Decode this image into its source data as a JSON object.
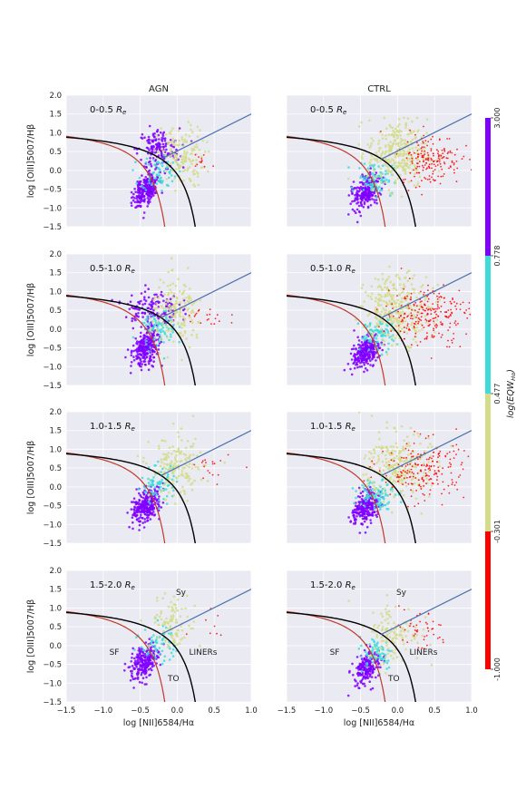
{
  "colors": {
    "panel_bg": "#EAEAF2",
    "grid": "#FFFFFF",
    "kewley_line": "#000000",
    "kauffmann_line": "#C0392B",
    "seyfert_liner_line": "#4C72B0"
  },
  "column_titles": [
    "AGN",
    "CTRL"
  ],
  "y_axis_label": "log [OIII]5007/Hβ",
  "x_axis_label": "log [NII]6584/Hα",
  "row_labels": [
    "0-0.5",
    "0.5-1.0",
    "1.0-1.5",
    "1.5-2.0"
  ],
  "row_label_unit": "R",
  "row_label_unit_sub": "e",
  "region_labels": {
    "sy": "Sy",
    "sf": "SF",
    "to": "TO",
    "liners": "LINERs"
  },
  "colorbar": {
    "label_prefix": "log(EQW",
    "label_sub": "Hα",
    "label_suffix": ")",
    "tick_labels": [
      "3.000",
      "0.778",
      "0.477",
      "-0.301",
      "-1.000"
    ],
    "bins": [
      {
        "from": -1.0,
        "to": -0.301,
        "color": "#FF0000"
      },
      {
        "from": -0.301,
        "to": 0.477,
        "color": "#D4DC8A"
      },
      {
        "from": 0.477,
        "to": 0.778,
        "color": "#3EDCD8"
      },
      {
        "from": 0.778,
        "to": 3.0,
        "color": "#8000FF"
      }
    ]
  },
  "chart_data": {
    "type": "scatter",
    "xlim": [
      -1.5,
      1.0
    ],
    "ylim": [
      -1.5,
      2.0
    ],
    "x_ticks": [
      -1.5,
      -1.0,
      -0.5,
      0.0,
      0.5,
      1.0
    ],
    "x_tick_labels": [
      "−1.5",
      "−1.0",
      "−0.5",
      "0.0",
      "0.5",
      "1.0"
    ],
    "y_ticks": [
      -1.5,
      -1.0,
      -0.5,
      0.0,
      0.5,
      1.0,
      1.5,
      2.0
    ],
    "y_tick_labels": [
      "−1.5",
      "−1.0",
      "−0.5",
      "0.0",
      "0.5",
      "1.0",
      "1.5",
      "2.0"
    ],
    "grid": true,
    "panels": [
      {
        "column": "AGN",
        "row": "0-0.5",
        "clusters": [
          {
            "cls": "sf",
            "x": -0.42,
            "y": -0.5,
            "sx": 0.07,
            "sy": 0.22,
            "n": 260
          },
          {
            "cls": "sf_up",
            "x": -0.25,
            "y": 0.55,
            "sx": 0.14,
            "sy": 0.28,
            "n": 160
          },
          {
            "cls": "cyan",
            "x": -0.25,
            "y": -0.05,
            "sx": 0.12,
            "sy": 0.25,
            "n": 70
          },
          {
            "cls": "green",
            "x": 0.05,
            "y": 0.35,
            "sx": 0.16,
            "sy": 0.4,
            "n": 150
          },
          {
            "cls": "red",
            "x": 0.35,
            "y": 0.25,
            "sx": 0.1,
            "sy": 0.15,
            "n": 12
          }
        ]
      },
      {
        "column": "CTRL",
        "row": "0-0.5",
        "clusters": [
          {
            "cls": "sf",
            "x": -0.43,
            "y": -0.55,
            "sx": 0.08,
            "sy": 0.22,
            "n": 240
          },
          {
            "cls": "cyan",
            "x": -0.3,
            "y": -0.2,
            "sx": 0.12,
            "sy": 0.22,
            "n": 90
          },
          {
            "cls": "green",
            "x": 0.0,
            "y": 0.45,
            "sx": 0.2,
            "sy": 0.45,
            "n": 300
          },
          {
            "cls": "red",
            "x": 0.45,
            "y": 0.3,
            "sx": 0.2,
            "sy": 0.35,
            "n": 180
          }
        ]
      },
      {
        "column": "AGN",
        "row": "0.5-1.0",
        "clusters": [
          {
            "cls": "sf",
            "x": -0.42,
            "y": -0.5,
            "sx": 0.08,
            "sy": 0.24,
            "n": 280
          },
          {
            "cls": "sf_up",
            "x": -0.35,
            "y": 0.55,
            "sx": 0.18,
            "sy": 0.25,
            "n": 140
          },
          {
            "cls": "cyan",
            "x": -0.25,
            "y": 0.0,
            "sx": 0.12,
            "sy": 0.25,
            "n": 80
          },
          {
            "cls": "green",
            "x": 0.0,
            "y": 0.4,
            "sx": 0.18,
            "sy": 0.45,
            "n": 170
          },
          {
            "cls": "red",
            "x": 0.4,
            "y": 0.3,
            "sx": 0.15,
            "sy": 0.2,
            "n": 20
          }
        ]
      },
      {
        "column": "CTRL",
        "row": "0.5-1.0",
        "clusters": [
          {
            "cls": "sf",
            "x": -0.43,
            "y": -0.6,
            "sx": 0.08,
            "sy": 0.22,
            "n": 260
          },
          {
            "cls": "cyan",
            "x": -0.28,
            "y": -0.15,
            "sx": 0.12,
            "sy": 0.22,
            "n": 90
          },
          {
            "cls": "green",
            "x": 0.0,
            "y": 0.55,
            "sx": 0.22,
            "sy": 0.45,
            "n": 300
          },
          {
            "cls": "red",
            "x": 0.4,
            "y": 0.4,
            "sx": 0.28,
            "sy": 0.4,
            "n": 240
          }
        ]
      },
      {
        "column": "AGN",
        "row": "1.0-1.5",
        "clusters": [
          {
            "cls": "sf",
            "x": -0.42,
            "y": -0.5,
            "sx": 0.08,
            "sy": 0.24,
            "n": 280
          },
          {
            "cls": "cyan",
            "x": -0.25,
            "y": 0.05,
            "sx": 0.12,
            "sy": 0.25,
            "n": 80
          },
          {
            "cls": "green",
            "x": 0.0,
            "y": 0.5,
            "sx": 0.18,
            "sy": 0.42,
            "n": 160
          },
          {
            "cls": "red",
            "x": 0.4,
            "y": 0.5,
            "sx": 0.15,
            "sy": 0.25,
            "n": 18
          }
        ]
      },
      {
        "column": "CTRL",
        "row": "1.0-1.5",
        "clusters": [
          {
            "cls": "sf",
            "x": -0.43,
            "y": -0.55,
            "sx": 0.08,
            "sy": 0.22,
            "n": 240
          },
          {
            "cls": "cyan",
            "x": -0.28,
            "y": -0.15,
            "sx": 0.12,
            "sy": 0.22,
            "n": 90
          },
          {
            "cls": "green",
            "x": 0.0,
            "y": 0.55,
            "sx": 0.22,
            "sy": 0.45,
            "n": 260
          },
          {
            "cls": "red",
            "x": 0.35,
            "y": 0.45,
            "sx": 0.3,
            "sy": 0.4,
            "n": 200
          }
        ]
      },
      {
        "column": "AGN",
        "row": "1.5-2.0",
        "clusters": [
          {
            "cls": "sf",
            "x": -0.45,
            "y": -0.45,
            "sx": 0.09,
            "sy": 0.24,
            "n": 220
          },
          {
            "cls": "cyan",
            "x": -0.25,
            "y": 0.05,
            "sx": 0.12,
            "sy": 0.25,
            "n": 60
          },
          {
            "cls": "green",
            "x": -0.05,
            "y": 0.6,
            "sx": 0.15,
            "sy": 0.35,
            "n": 100
          },
          {
            "cls": "red",
            "x": 0.3,
            "y": 0.6,
            "sx": 0.15,
            "sy": 0.25,
            "n": 8
          }
        ]
      },
      {
        "column": "CTRL",
        "row": "1.5-2.0",
        "clusters": [
          {
            "cls": "sf",
            "x": -0.42,
            "y": -0.6,
            "sx": 0.09,
            "sy": 0.22,
            "n": 200
          },
          {
            "cls": "cyan",
            "x": -0.28,
            "y": -0.2,
            "sx": 0.12,
            "sy": 0.22,
            "n": 70
          },
          {
            "cls": "green",
            "x": -0.05,
            "y": 0.35,
            "sx": 0.18,
            "sy": 0.4,
            "n": 120
          },
          {
            "cls": "red",
            "x": 0.3,
            "y": 0.4,
            "sx": 0.2,
            "sy": 0.3,
            "n": 45
          }
        ]
      }
    ]
  }
}
